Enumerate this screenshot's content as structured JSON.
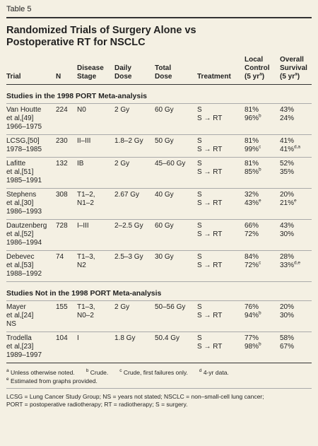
{
  "label": "Table 5",
  "title": [
    "Randomized Trials of Surgery Alone vs",
    "Postoperative RT for NSCLC"
  ],
  "table": {
    "columns": [
      [
        "Trial"
      ],
      [
        "N"
      ],
      [
        "Disease",
        "Stage"
      ],
      [
        "Daily",
        "Dose"
      ],
      [
        "Total",
        "Dose"
      ],
      [
        "Treatment"
      ],
      [
        "Local",
        "Control",
        {
          "text": "(5 yr",
          "sup": "a",
          "after": ")"
        }
      ],
      [
        "Overall",
        "Survival",
        {
          "text": "(5 yr",
          "sup": "a",
          "after": ")"
        }
      ]
    ],
    "sections": [
      {
        "title": "Studies in the 1998 PORT Meta-analysis",
        "rows": [
          {
            "trial": [
              "Van Houtte",
              "et al,[49]",
              "1966–1975"
            ],
            "n": "224",
            "stage": [
              "N0"
            ],
            "daily": [
              "2 Gy"
            ],
            "total": [
              "60 Gy"
            ],
            "treatment": [
              "S",
              "S → RT"
            ],
            "local": [
              "81%",
              {
                "text": "96%",
                "sup": "b"
              }
            ],
            "overall": [
              "43%",
              "24%"
            ]
          },
          {
            "trial": [
              "LCSG,[50]",
              "1978–1985"
            ],
            "n": "230",
            "stage": [
              "II–III"
            ],
            "daily": [
              "1.8–2 Gy"
            ],
            "total": [
              "50 Gy"
            ],
            "treatment": [
              "S",
              "S → RT"
            ],
            "local": [
              "81%",
              {
                "text": "99%",
                "sup": "c"
              }
            ],
            "overall": [
              "41%",
              {
                "text": "41%",
                "sup": "d,a"
              }
            ]
          },
          {
            "trial": [
              "Lafitte",
              "et al,[51]",
              "1985–1991"
            ],
            "n": "132",
            "stage": [
              "IB"
            ],
            "daily": [
              "2 Gy"
            ],
            "total": [
              "45–60 Gy"
            ],
            "treatment": [
              "S",
              "S → RT"
            ],
            "local": [
              "81%",
              {
                "text": "85%",
                "sup": "b"
              }
            ],
            "overall": [
              "52%",
              "35%"
            ]
          },
          {
            "trial": [
              "Stephens",
              "et al,[30]",
              "1986–1993"
            ],
            "n": "308",
            "stage": [
              "T1–2,",
              "N1–2"
            ],
            "daily": [
              "2.67 Gy"
            ],
            "total": [
              "40 Gy"
            ],
            "treatment": [
              "S",
              "S → RT"
            ],
            "local": [
              "32%",
              {
                "text": "43%",
                "sup": "e"
              }
            ],
            "overall": [
              "20%",
              {
                "text": "21%",
                "sup": "e"
              }
            ]
          },
          {
            "trial": [
              "Dautzenberg",
              "et al,[52]",
              "1986–1994"
            ],
            "n": "728",
            "stage": [
              "I–III"
            ],
            "daily": [
              "2–2.5 Gy"
            ],
            "total": [
              "60 Gy"
            ],
            "treatment": [
              "S",
              "S → RT"
            ],
            "local": [
              "66%",
              "72%"
            ],
            "overall": [
              "43%",
              "30%"
            ]
          },
          {
            "trial": [
              "Debevec",
              "et al,[53]",
              "1988–1992"
            ],
            "n": "74",
            "stage": [
              "T1–3,",
              "N2"
            ],
            "daily": [
              "2.5–3 Gy"
            ],
            "total": [
              "30 Gy"
            ],
            "treatment": [
              "S",
              "S → RT"
            ],
            "local": [
              "84%",
              {
                "text": "72%",
                "sup": "c"
              }
            ],
            "overall": [
              "28%",
              {
                "text": "33%",
                "sup": "d,e"
              }
            ]
          }
        ]
      },
      {
        "title": "Studies Not in the 1998 PORT Meta-analysis",
        "rows": [
          {
            "trial": [
              "Mayer",
              "et al,[24]",
              "NS"
            ],
            "n": "155",
            "stage": [
              "T1–3,",
              "N0–2"
            ],
            "daily": [
              "2 Gy"
            ],
            "total": [
              "50–56 Gy"
            ],
            "treatment": [
              "S",
              "S → RT"
            ],
            "local": [
              "76%",
              {
                "text": "94%",
                "sup": "b"
              }
            ],
            "overall": [
              "20%",
              "30%"
            ]
          },
          {
            "trial": [
              "Trodella",
              "et al,[23]",
              "1989–1997"
            ],
            "n": "104",
            "stage": [
              "I"
            ],
            "daily": [
              "1.8 Gy"
            ],
            "total": [
              "50.4 Gy"
            ],
            "treatment": [
              "S",
              "S → RT"
            ],
            "local": [
              "77%",
              {
                "text": "98%",
                "sup": "b"
              }
            ],
            "overall": [
              "58%",
              "67%"
            ]
          }
        ]
      }
    ]
  },
  "footnotes": [
    [
      {
        "sup": "a",
        "text": "Unless otherwise noted."
      },
      {
        "sup": "b",
        "text": "Crude."
      },
      {
        "sup": "c",
        "text": "Crude, first failures only."
      },
      {
        "sup": "d",
        "text": "4-yr data."
      }
    ],
    [
      {
        "sup": "e",
        "text": "Estimated from graphs provided."
      }
    ]
  ],
  "abbreviations": [
    "LCSG = Lung Cancer Study Group; NS = years not stated; NSCLC = non–small-cell lung cancer;",
    "PORT = postoperative radiotherapy; RT = radiotherapy; S = surgery."
  ]
}
